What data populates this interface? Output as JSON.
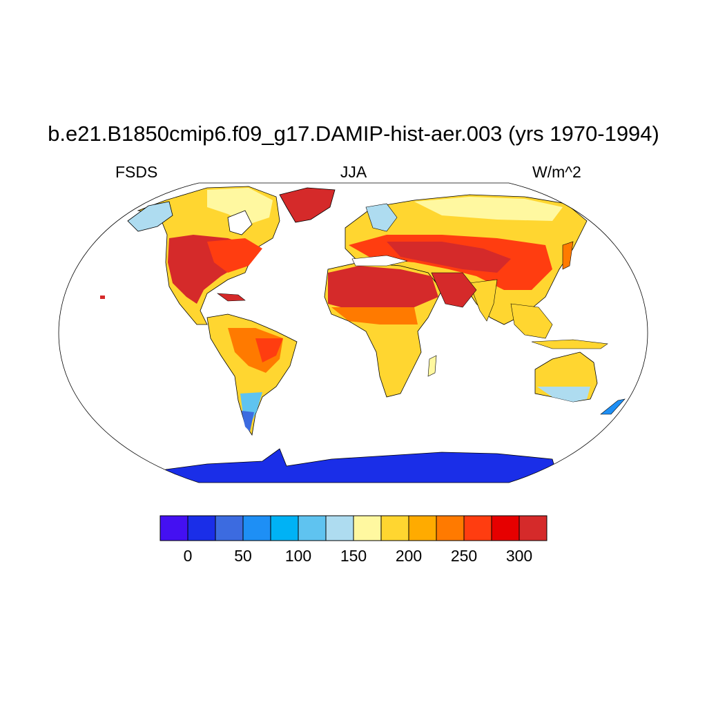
{
  "title": "b.e21.B1850cmip6.f09_g17.DAMIP-hist-aer.003 (yrs 1970-1994)",
  "variable": "FSDS",
  "season": "JJA",
  "units": "W/m^2",
  "projection": "robinson",
  "colorbar": {
    "colors": [
      "#4410f2",
      "#1a2ee8",
      "#3c6be0",
      "#1e8ff5",
      "#00b2f5",
      "#5fc3f0",
      "#aedcf0",
      "#fff8a0",
      "#ffd630",
      "#ffab00",
      "#ff7a00",
      "#ff3d10",
      "#e60000",
      "#d52a2a"
    ],
    "ticks": [
      "0",
      "50",
      "100",
      "150",
      "200",
      "250",
      "300"
    ]
  },
  "regions": {
    "antarctica": "#1a2ee8",
    "greenland": "#d52a2a",
    "sahara_arabia": "#d52a2a",
    "north_america_core": "#d52a2a",
    "tropics": "#ffab00",
    "high_latitudes": "#fff8a0"
  }
}
